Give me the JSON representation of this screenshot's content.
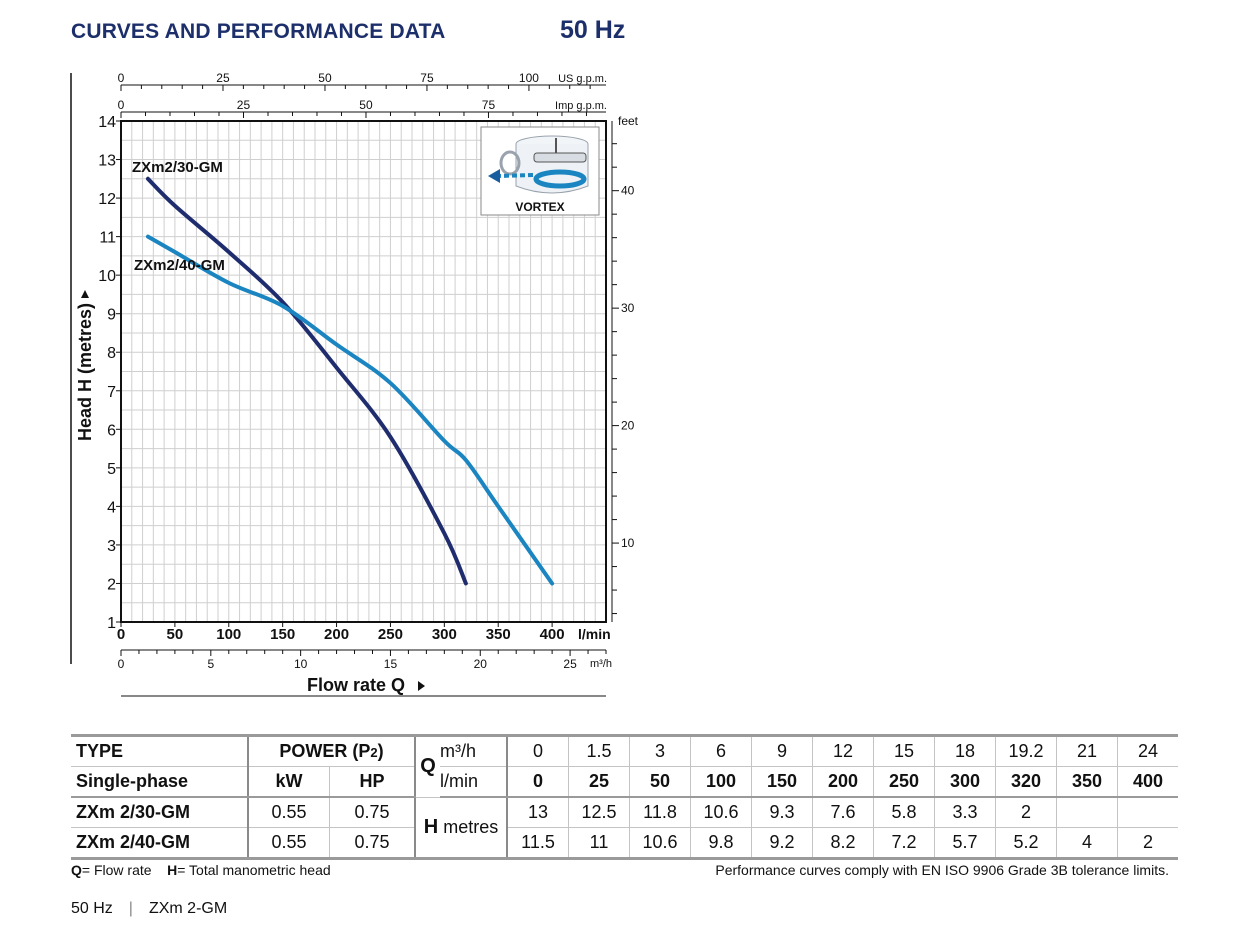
{
  "header": {
    "title": "CURVES AND PERFORMANCE DATA",
    "frequency": "50 Hz"
  },
  "chart_data": {
    "type": "line",
    "x_unit": "l/min",
    "y_unit": "metres",
    "xlim": [
      0,
      450
    ],
    "ylim": [
      1,
      14
    ],
    "grid": true,
    "x_ticks": [
      0,
      50,
      100,
      150,
      200,
      250,
      300,
      350,
      400
    ],
    "y_ticks": [
      1,
      2,
      3,
      4,
      5,
      6,
      7,
      8,
      9,
      10,
      11,
      12,
      13,
      14
    ],
    "xlabel": "Flow rate Q",
    "ylabel": "Head H (metres)",
    "x_unit_label": "l/min",
    "secondary_axes": {
      "us_gpm": {
        "unit": "US g.p.m.",
        "ticks": [
          0,
          25,
          50,
          75,
          100
        ],
        "lpm_per_unit": 3.785
      },
      "imp_gpm": {
        "unit": "Imp g.p.m.",
        "ticks": [
          0,
          25,
          50,
          75
        ],
        "lpm_per_unit": 4.546
      },
      "m3h": {
        "unit": "m³/h",
        "ticks": [
          0,
          5,
          10,
          15,
          20,
          25
        ],
        "lpm_per_unit": 16.667
      },
      "feet": {
        "unit": "feet",
        "ticks": [
          10,
          20,
          30,
          40
        ],
        "m_per_unit": 0.3048
      }
    },
    "series": [
      {
        "name": "ZXm2/30-GM",
        "color": "#1f2d6e",
        "x": [
          25,
          50,
          100,
          150,
          200,
          250,
          300,
          320
        ],
        "y": [
          12.5,
          11.8,
          10.6,
          9.3,
          7.6,
          5.8,
          3.3,
          2
        ]
      },
      {
        "name": "ZXm2/40-GM",
        "color": "#1a85c0",
        "x": [
          25,
          50,
          100,
          150,
          200,
          250,
          300,
          320,
          350,
          400
        ],
        "y": [
          11,
          10.6,
          9.8,
          9.2,
          8.2,
          7.2,
          5.7,
          5.2,
          4,
          2
        ]
      }
    ]
  },
  "vortex": {
    "label": "VORTEX"
  },
  "table": {
    "type_label": "TYPE",
    "phase_label": "Single-phase",
    "power_label": "POWER (P",
    "power_sub": "2",
    "power_close": ")",
    "kw_label": "kW",
    "hp_label": "HP",
    "q_label": "Q",
    "m3h_label": "m³/h",
    "lmin_label": "l/min",
    "h_label": "H",
    "metres_label": "metres",
    "m3h": [
      "0",
      "1.5",
      "3",
      "6",
      "9",
      "12",
      "15",
      "18",
      "19.2",
      "21",
      "24"
    ],
    "lmin": [
      "0",
      "25",
      "50",
      "100",
      "150",
      "200",
      "250",
      "300",
      "320",
      "350",
      "400"
    ],
    "rows": [
      {
        "type": "ZXm 2/30-GM",
        "kw": "0.55",
        "hp": "0.75",
        "h": [
          "13",
          "12.5",
          "11.8",
          "10.6",
          "9.3",
          "7.6",
          "5.8",
          "3.3",
          "2",
          "",
          ""
        ]
      },
      {
        "type": "ZXm 2/40-GM",
        "kw": "0.55",
        "hp": "0.75",
        "h": [
          "11.5",
          "11",
          "10.6",
          "9.8",
          "9.2",
          "8.2",
          "7.2",
          "5.7",
          "5.2",
          "4",
          "2"
        ]
      }
    ]
  },
  "notes": {
    "q_key": "Q",
    "q_text": "= Flow rate",
    "h_key": "H",
    "h_text": "= Total manometric head",
    "compliance": "Performance curves comply with EN ISO 9906 Grade 3B tolerance limits."
  },
  "footer": {
    "frequency": "50 Hz",
    "separator": "|",
    "model": "ZXm 2-GM"
  }
}
